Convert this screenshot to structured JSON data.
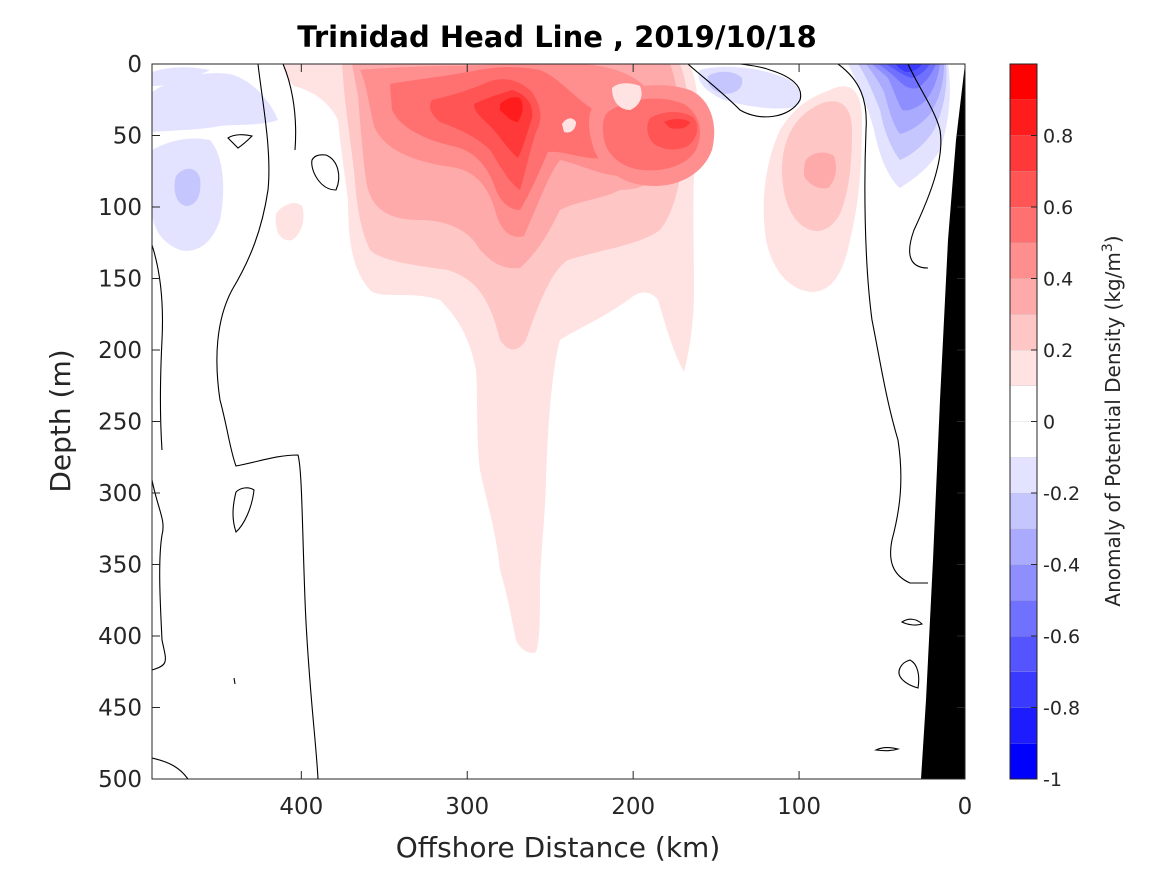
{
  "chart_data": {
    "type": "heatmap",
    "title": "Trinidad Head Line , 2019/10/18",
    "xlabel": "Offshore Distance (km)",
    "ylabel": "Depth (m)",
    "xlim": [
      490,
      0
    ],
    "ylim": [
      500,
      0
    ],
    "x_reversed": true,
    "y_reversed": true,
    "xticks": [
      400,
      300,
      200,
      100,
      0
    ],
    "xtick_labels": [
      "400",
      "300",
      "200",
      "100",
      "0"
    ],
    "yticks": [
      0,
      50,
      100,
      150,
      200,
      250,
      300,
      350,
      400,
      450,
      500
    ],
    "ytick_labels": [
      "0",
      "50",
      "100",
      "150",
      "200",
      "250",
      "300",
      "350",
      "400",
      "450",
      "500"
    ],
    "grid": false,
    "colorbar": {
      "label": "Anomaly of Potential Density (kg/m",
      "label_superscript": "3",
      "label_suffix": ")",
      "range": [
        -1,
        1
      ],
      "ticks": [
        -1,
        -0.8,
        -0.6,
        -0.4,
        -0.2,
        0,
        0.2,
        0.4,
        0.6,
        0.8
      ],
      "tick_labels": [
        "-1",
        "-0.8",
        "-0.6",
        "-0.4",
        "-0.2",
        "0",
        "0.2",
        "0.4",
        "0.6",
        "0.8"
      ],
      "levels": [
        {
          "range": [
            -1.0,
            -0.9
          ],
          "color": "#0000ff"
        },
        {
          "range": [
            -0.9,
            -0.8
          ],
          "color": "#1c1cff"
        },
        {
          "range": [
            -0.8,
            -0.7
          ],
          "color": "#3939ff"
        },
        {
          "range": [
            -0.7,
            -0.6
          ],
          "color": "#5555ff"
        },
        {
          "range": [
            -0.6,
            -0.5
          ],
          "color": "#7171ff"
        },
        {
          "range": [
            -0.5,
            -0.4
          ],
          "color": "#8e8eff"
        },
        {
          "range": [
            -0.4,
            -0.3
          ],
          "color": "#aaaaff"
        },
        {
          "range": [
            -0.3,
            -0.2
          ],
          "color": "#c6c6ff"
        },
        {
          "range": [
            -0.2,
            -0.1
          ],
          "color": "#e3e3ff"
        },
        {
          "range": [
            -0.1,
            0.0
          ],
          "color": "#ffffff"
        },
        {
          "range": [
            0.0,
            0.1
          ],
          "color": "#ffffff"
        },
        {
          "range": [
            0.1,
            0.2
          ],
          "color": "#ffe3e3"
        },
        {
          "range": [
            0.2,
            0.3
          ],
          "color": "#ffc6c6"
        },
        {
          "range": [
            0.3,
            0.4
          ],
          "color": "#ffaaaa"
        },
        {
          "range": [
            0.4,
            0.5
          ],
          "color": "#ff8e8e"
        },
        {
          "range": [
            0.5,
            0.6
          ],
          "color": "#ff7171"
        },
        {
          "range": [
            0.6,
            0.7
          ],
          "color": "#ff5555"
        },
        {
          "range": [
            0.7,
            0.8
          ],
          "color": "#ff3939"
        },
        {
          "range": [
            0.8,
            0.9
          ],
          "color": "#ff1c1c"
        },
        {
          "range": [
            0.9,
            1.0
          ],
          "color": "#ff0000"
        }
      ]
    },
    "features": [
      {
        "name": "main-positive-anomaly",
        "center_km": 270,
        "center_depth_m": 30,
        "peak": 0.8,
        "extends_to_depth_m": 410
      },
      {
        "name": "secondary-positive-anomaly",
        "center_km": 175,
        "center_depth_m": 40,
        "peak": 0.6
      },
      {
        "name": "nearshore-positive-anomaly",
        "center_km": 85,
        "center_depth_m": 80,
        "peak": 0.4
      },
      {
        "name": "nearshore-surface-negative-anomaly",
        "center_km": 35,
        "center_depth_m": 5,
        "peak": -0.7
      },
      {
        "name": "offshore-negative-anomaly",
        "center_km": 470,
        "center_depth_m": 80,
        "peak": -0.3
      },
      {
        "name": "offshore-surface-negative-anomaly",
        "center_km": 470,
        "center_depth_m": 30,
        "peak": -0.2
      },
      {
        "name": "surface-negative-anomaly-140km",
        "center_km": 140,
        "center_depth_m": 15,
        "peak": -0.3
      }
    ],
    "land_mask_color": "#000000"
  }
}
